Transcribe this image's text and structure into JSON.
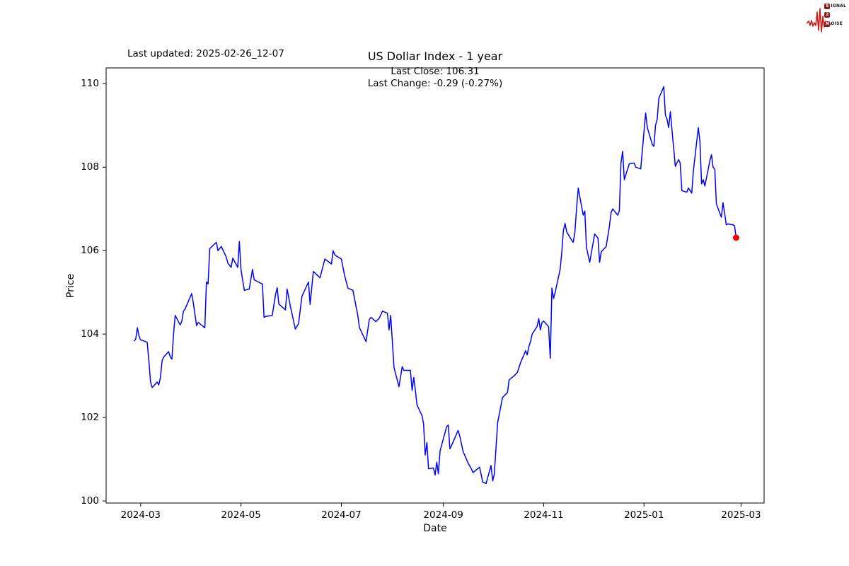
{
  "header": {
    "last_updated": "Last updated: 2025-02-26_12-07",
    "title": "US Dollar Index - 1 year",
    "subtitle_line1": "Last Close: 106.31",
    "subtitle_line2": "Last Change: -0.29 (-0.27%)"
  },
  "logo": {
    "word1_initial": "S",
    "word1_rest": "IGNAL",
    "word2_initial": "2",
    "word3_initial": "N",
    "word3_rest": "OISE",
    "badge_color": "#8B1A1A",
    "wave_color": "#C41E1E"
  },
  "chart_data": {
    "type": "line",
    "title": "US Dollar Index - 1 year",
    "xlabel": "Date",
    "ylabel": "Price",
    "last_close": 106.31,
    "last_change": "-0.29 (-0.27%)",
    "line_color": "#0000FF",
    "marker_color": "#FF0000",
    "axis_color": "#000000",
    "grid": false,
    "legend": "none",
    "ylim": [
      99.95,
      110.38
    ],
    "xlim": [
      "2024-02-09",
      "2025-03-15"
    ],
    "y_ticks": [
      100,
      102,
      104,
      106,
      108,
      110
    ],
    "x_ticks": [
      {
        "label": "2024-03",
        "date": "2024-03-01"
      },
      {
        "label": "2024-05",
        "date": "2024-05-01"
      },
      {
        "label": "2024-07",
        "date": "2024-07-01"
      },
      {
        "label": "2024-09",
        "date": "2024-09-01"
      },
      {
        "label": "2024-11",
        "date": "2024-11-01"
      },
      {
        "label": "2025-01",
        "date": "2025-01-01"
      },
      {
        "label": "2025-03",
        "date": "2025-03-01"
      }
    ],
    "series": [
      {
        "name": "US Dollar Index",
        "points": [
          [
            "2024-02-26",
            103.83
          ],
          [
            "2024-02-27",
            103.88
          ],
          [
            "2024-02-28",
            104.15
          ],
          [
            "2024-02-29",
            103.95
          ],
          [
            "2024-03-01",
            103.86
          ],
          [
            "2024-03-04",
            103.82
          ],
          [
            "2024-03-05",
            103.8
          ],
          [
            "2024-03-06",
            103.36
          ],
          [
            "2024-03-07",
            102.85
          ],
          [
            "2024-03-08",
            102.72
          ],
          [
            "2024-03-11",
            102.85
          ],
          [
            "2024-03-12",
            102.78
          ],
          [
            "2024-03-13",
            102.95
          ],
          [
            "2024-03-14",
            103.36
          ],
          [
            "2024-03-15",
            103.45
          ],
          [
            "2024-03-18",
            103.58
          ],
          [
            "2024-03-19",
            103.45
          ],
          [
            "2024-03-20",
            103.4
          ],
          [
            "2024-03-21",
            104.0
          ],
          [
            "2024-03-22",
            104.45
          ],
          [
            "2024-03-25",
            104.22
          ],
          [
            "2024-03-26",
            104.3
          ],
          [
            "2024-03-27",
            104.55
          ],
          [
            "2024-03-28",
            104.6
          ],
          [
            "2024-04-01",
            104.97
          ],
          [
            "2024-04-02",
            104.75
          ],
          [
            "2024-04-04",
            104.2
          ],
          [
            "2024-04-05",
            104.28
          ],
          [
            "2024-04-09",
            104.15
          ],
          [
            "2024-04-10",
            105.25
          ],
          [
            "2024-04-11",
            105.2
          ],
          [
            "2024-04-12",
            106.05
          ],
          [
            "2024-04-16",
            106.2
          ],
          [
            "2024-04-17",
            106.0
          ],
          [
            "2024-04-19",
            106.1
          ],
          [
            "2024-04-22",
            105.85
          ],
          [
            "2024-04-23",
            105.7
          ],
          [
            "2024-04-25",
            105.6
          ],
          [
            "2024-04-26",
            105.82
          ],
          [
            "2024-04-29",
            105.6
          ],
          [
            "2024-04-30",
            106.22
          ],
          [
            "2024-05-01",
            105.55
          ],
          [
            "2024-05-03",
            105.05
          ],
          [
            "2024-05-06",
            105.08
          ],
          [
            "2024-05-08",
            105.55
          ],
          [
            "2024-05-09",
            105.3
          ],
          [
            "2024-05-13",
            105.22
          ],
          [
            "2024-05-14",
            105.2
          ],
          [
            "2024-05-15",
            104.4
          ],
          [
            "2024-05-16",
            104.42
          ],
          [
            "2024-05-20",
            104.45
          ],
          [
            "2024-05-22",
            104.95
          ],
          [
            "2024-05-23",
            105.11
          ],
          [
            "2024-05-24",
            104.72
          ],
          [
            "2024-05-28",
            104.58
          ],
          [
            "2024-05-29",
            105.08
          ],
          [
            "2024-05-31",
            104.67
          ],
          [
            "2024-06-03",
            104.12
          ],
          [
            "2024-06-05",
            104.25
          ],
          [
            "2024-06-07",
            104.9
          ],
          [
            "2024-06-11",
            105.25
          ],
          [
            "2024-06-12",
            104.71
          ],
          [
            "2024-06-14",
            105.5
          ],
          [
            "2024-06-18",
            105.35
          ],
          [
            "2024-06-21",
            105.8
          ],
          [
            "2024-06-25",
            105.68
          ],
          [
            "2024-06-26",
            106.0
          ],
          [
            "2024-06-27",
            105.9
          ],
          [
            "2024-06-28",
            105.87
          ],
          [
            "2024-07-01",
            105.8
          ],
          [
            "2024-07-03",
            105.4
          ],
          [
            "2024-07-05",
            105.1
          ],
          [
            "2024-07-08",
            105.05
          ],
          [
            "2024-07-11",
            104.45
          ],
          [
            "2024-07-12",
            104.15
          ],
          [
            "2024-07-16",
            103.82
          ],
          [
            "2024-07-18",
            104.35
          ],
          [
            "2024-07-19",
            104.4
          ],
          [
            "2024-07-22",
            104.3
          ],
          [
            "2024-07-24",
            104.38
          ],
          [
            "2024-07-26",
            104.55
          ],
          [
            "2024-07-29",
            104.5
          ],
          [
            "2024-07-30",
            104.1
          ],
          [
            "2024-07-31",
            104.45
          ],
          [
            "2024-08-02",
            103.2
          ],
          [
            "2024-08-05",
            102.74
          ],
          [
            "2024-08-07",
            103.22
          ],
          [
            "2024-08-08",
            103.13
          ],
          [
            "2024-08-12",
            103.13
          ],
          [
            "2024-08-13",
            102.65
          ],
          [
            "2024-08-14",
            102.96
          ],
          [
            "2024-08-15",
            102.65
          ],
          [
            "2024-08-16",
            102.3
          ],
          [
            "2024-08-19",
            102.05
          ],
          [
            "2024-08-20",
            101.85
          ],
          [
            "2024-08-21",
            101.1
          ],
          [
            "2024-08-22",
            101.4
          ],
          [
            "2024-08-23",
            100.77
          ],
          [
            "2024-08-26",
            100.79
          ],
          [
            "2024-08-27",
            100.62
          ],
          [
            "2024-08-28",
            100.93
          ],
          [
            "2024-08-29",
            100.65
          ],
          [
            "2024-08-30",
            101.2
          ],
          [
            "2024-09-03",
            101.78
          ],
          [
            "2024-09-04",
            101.82
          ],
          [
            "2024-09-05",
            101.25
          ],
          [
            "2024-09-06",
            101.33
          ],
          [
            "2024-09-10",
            101.69
          ],
          [
            "2024-09-11",
            101.55
          ],
          [
            "2024-09-13",
            101.19
          ],
          [
            "2024-09-16",
            100.91
          ],
          [
            "2024-09-18",
            100.77
          ],
          [
            "2024-09-19",
            100.68
          ],
          [
            "2024-09-23",
            100.81
          ],
          [
            "2024-09-25",
            100.45
          ],
          [
            "2024-09-27",
            100.42
          ],
          [
            "2024-09-30",
            100.85
          ],
          [
            "2024-10-01",
            100.48
          ],
          [
            "2024-10-02",
            100.65
          ],
          [
            "2024-10-04",
            101.88
          ],
          [
            "2024-10-07",
            102.48
          ],
          [
            "2024-10-08",
            102.52
          ],
          [
            "2024-10-10",
            102.6
          ],
          [
            "2024-10-11",
            102.9
          ],
          [
            "2024-10-14",
            103.0
          ],
          [
            "2024-10-16",
            103.08
          ],
          [
            "2024-10-17",
            103.2
          ],
          [
            "2024-10-18",
            103.32
          ],
          [
            "2024-10-21",
            103.6
          ],
          [
            "2024-10-22",
            103.5
          ],
          [
            "2024-10-23",
            103.7
          ],
          [
            "2024-10-24",
            103.82
          ],
          [
            "2024-10-25",
            104.0
          ],
          [
            "2024-10-28",
            104.18
          ],
          [
            "2024-10-29",
            104.37
          ],
          [
            "2024-10-30",
            104.1
          ],
          [
            "2024-10-31",
            104.28
          ],
          [
            "2024-11-01",
            104.31
          ],
          [
            "2024-11-04",
            104.18
          ],
          [
            "2024-11-05",
            103.42
          ],
          [
            "2024-11-06",
            105.1
          ],
          [
            "2024-11-07",
            104.85
          ],
          [
            "2024-11-08",
            105.0
          ],
          [
            "2024-11-11",
            105.55
          ],
          [
            "2024-11-12",
            105.95
          ],
          [
            "2024-11-13",
            106.48
          ],
          [
            "2024-11-14",
            106.65
          ],
          [
            "2024-11-15",
            106.45
          ],
          [
            "2024-11-18",
            106.25
          ],
          [
            "2024-11-19",
            106.2
          ],
          [
            "2024-11-20",
            106.45
          ],
          [
            "2024-11-21",
            107.0
          ],
          [
            "2024-11-22",
            107.5
          ],
          [
            "2024-11-25",
            106.85
          ],
          [
            "2024-11-26",
            106.95
          ],
          [
            "2024-11-27",
            106.08
          ],
          [
            "2024-11-29",
            105.72
          ],
          [
            "2024-12-02",
            106.4
          ],
          [
            "2024-12-03",
            106.35
          ],
          [
            "2024-12-04",
            106.3
          ],
          [
            "2024-12-05",
            105.72
          ],
          [
            "2024-12-06",
            105.97
          ],
          [
            "2024-12-09",
            106.1
          ],
          [
            "2024-12-11",
            106.6
          ],
          [
            "2024-12-12",
            106.92
          ],
          [
            "2024-12-13",
            107.0
          ],
          [
            "2024-12-16",
            106.85
          ],
          [
            "2024-12-17",
            106.95
          ],
          [
            "2024-12-18",
            108.1
          ],
          [
            "2024-12-19",
            108.38
          ],
          [
            "2024-12-20",
            107.7
          ],
          [
            "2024-12-23",
            108.08
          ],
          [
            "2024-12-26",
            108.1
          ],
          [
            "2024-12-27",
            108.0
          ],
          [
            "2024-12-30",
            107.96
          ],
          [
            "2024-12-31",
            108.4
          ],
          [
            "2025-01-02",
            109.3
          ],
          [
            "2025-01-03",
            108.95
          ],
          [
            "2025-01-06",
            108.55
          ],
          [
            "2025-01-07",
            108.5
          ],
          [
            "2025-01-08",
            109.0
          ],
          [
            "2025-01-09",
            109.15
          ],
          [
            "2025-01-10",
            109.65
          ],
          [
            "2025-01-13",
            109.93
          ],
          [
            "2025-01-14",
            109.25
          ],
          [
            "2025-01-15",
            109.15
          ],
          [
            "2025-01-16",
            108.95
          ],
          [
            "2025-01-17",
            109.33
          ],
          [
            "2025-01-20",
            108.02
          ],
          [
            "2025-01-21",
            108.1
          ],
          [
            "2025-01-22",
            108.18
          ],
          [
            "2025-01-23",
            108.1
          ],
          [
            "2025-01-24",
            107.44
          ],
          [
            "2025-01-27",
            107.4
          ],
          [
            "2025-01-28",
            107.5
          ],
          [
            "2025-01-30",
            107.38
          ],
          [
            "2025-01-31",
            107.9
          ],
          [
            "2025-02-03",
            108.95
          ],
          [
            "2025-02-04",
            108.62
          ],
          [
            "2025-02-05",
            107.6
          ],
          [
            "2025-02-06",
            107.7
          ],
          [
            "2025-02-07",
            107.55
          ],
          [
            "2025-02-10",
            108.15
          ],
          [
            "2025-02-11",
            108.3
          ],
          [
            "2025-02-12",
            108.0
          ],
          [
            "2025-02-13",
            107.95
          ],
          [
            "2025-02-14",
            107.12
          ],
          [
            "2025-02-17",
            106.8
          ],
          [
            "2025-02-18",
            107.15
          ],
          [
            "2025-02-19",
            106.9
          ],
          [
            "2025-02-20",
            106.62
          ],
          [
            "2025-02-21",
            106.64
          ],
          [
            "2025-02-24",
            106.62
          ],
          [
            "2025-02-25",
            106.6
          ],
          [
            "2025-02-26",
            106.31
          ]
        ]
      }
    ]
  }
}
